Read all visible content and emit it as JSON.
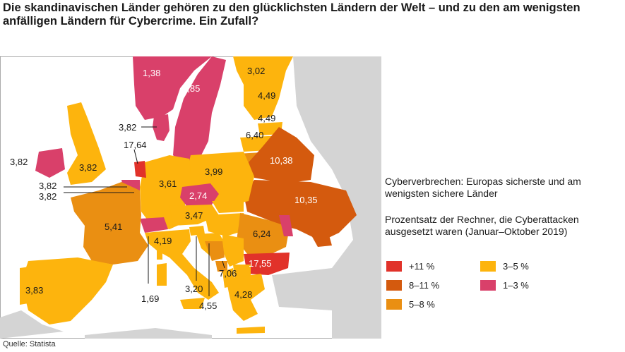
{
  "title": "Die skandinavischen Länder gehören zu den glücklichsten Ländern der Welt – und zu den am wenigsten anfälligen Ländern für Cybercrime. Ein Zufall?",
  "legend": {
    "heading": "Cyberverbrechen: Europas sicherste und am wenigsten sichere Länder",
    "subheading": "Prozentsatz der Rechner, die Cyberattacken ausgesetzt waren (Januar–Oktober 2019)",
    "items": [
      {
        "label": "+11 %",
        "color": "#e1322a"
      },
      {
        "label": "8–11 %",
        "color": "#d45a0e"
      },
      {
        "label": "5–8 %",
        "color": "#ea8f12"
      },
      {
        "label": "3–5 %",
        "color": "#fdb40d"
      },
      {
        "label": "1–3 %",
        "color": "#d9406a"
      }
    ]
  },
  "source": "Quelle: Statista",
  "map_labels": [
    "1,38",
    "1,85",
    "3,02",
    "4,49",
    "4,49",
    "3,82",
    "6,40",
    "17,64",
    "3,82",
    "3,82",
    "10,38",
    "3,99",
    "3,61",
    "3,82",
    "3,82",
    "2,74",
    "10,35",
    "3,47",
    "5,41",
    "6,24",
    "4,19",
    "17,55",
    "7,06",
    "3,83",
    "3,20",
    "1,69",
    "4,55",
    "4,28"
  ]
}
